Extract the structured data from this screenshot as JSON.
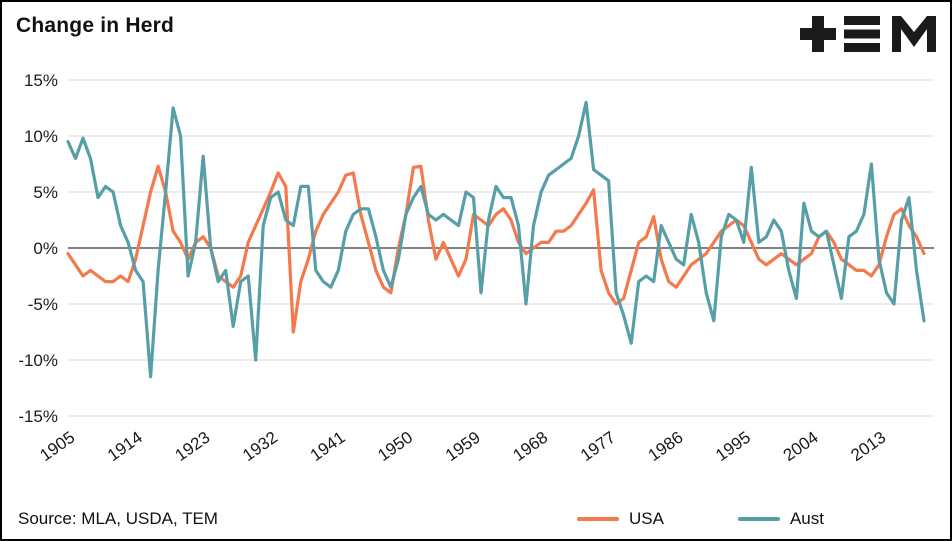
{
  "page": {
    "title": "Change in Herd",
    "source": "Source: MLA, USDA, TEM"
  },
  "logo": {
    "name": "TEM",
    "icon": "plus-triplebar-m-logo",
    "color": "#1a1a1a"
  },
  "chart_data": {
    "type": "line",
    "title": "Change in Herd",
    "xlabel": "",
    "ylabel": "",
    "grid": "horizontal",
    "legend_position": "bottom",
    "xlim": [
      1905,
      2019
    ],
    "ylim": [
      -15,
      15
    ],
    "ytick_values": [
      15,
      10,
      5,
      0,
      -5,
      -10,
      -15
    ],
    "ytick_labels": [
      "15%",
      "10%",
      "5%",
      "0%",
      "-5%",
      "-10%",
      "-15%"
    ],
    "xtick_labels": [
      "1905",
      "1914",
      "1923",
      "1932",
      "1941",
      "1950",
      "1959",
      "1968",
      "1977",
      "1986",
      "1995",
      "2004",
      "2013"
    ],
    "x": [
      1905,
      1906,
      1907,
      1908,
      1909,
      1910,
      1911,
      1912,
      1913,
      1914,
      1915,
      1916,
      1917,
      1918,
      1919,
      1920,
      1921,
      1922,
      1923,
      1924,
      1925,
      1926,
      1927,
      1928,
      1929,
      1930,
      1931,
      1932,
      1933,
      1934,
      1935,
      1936,
      1937,
      1938,
      1939,
      1940,
      1941,
      1942,
      1943,
      1944,
      1945,
      1946,
      1947,
      1948,
      1949,
      1950,
      1951,
      1952,
      1953,
      1954,
      1955,
      1956,
      1957,
      1958,
      1959,
      1960,
      1961,
      1962,
      1963,
      1964,
      1965,
      1966,
      1967,
      1968,
      1969,
      1970,
      1971,
      1972,
      1973,
      1974,
      1975,
      1976,
      1977,
      1978,
      1979,
      1980,
      1981,
      1982,
      1983,
      1984,
      1985,
      1986,
      1987,
      1988,
      1989,
      1990,
      1991,
      1992,
      1993,
      1994,
      1995,
      1996,
      1997,
      1998,
      1999,
      2000,
      2001,
      2002,
      2003,
      2004,
      2005,
      2006,
      2007,
      2008,
      2009,
      2010,
      2011,
      2012,
      2013,
      2014,
      2015,
      2016,
      2017,
      2018,
      2019
    ],
    "series": [
      {
        "name": "USA",
        "color": "#F4794D",
        "values": [
          -0.5,
          -1.5,
          -2.5,
          -2,
          -2.5,
          -3,
          -3,
          -2.5,
          -3,
          -1,
          2,
          5,
          7.3,
          5,
          1.5,
          0.5,
          -1,
          0.5,
          1,
          0,
          -2.5,
          -3,
          -3.5,
          -2.5,
          0.5,
          2,
          3.5,
          5,
          6.7,
          5.5,
          -7.5,
          -3,
          -1,
          1.5,
          3,
          4,
          5,
          6.5,
          6.7,
          3,
          0.5,
          -2,
          -3.5,
          -4,
          0,
          3,
          7.2,
          7.3,
          2.5,
          -1,
          0.5,
          -1,
          -2.5,
          -1,
          3,
          2.5,
          2,
          3,
          3.5,
          2.5,
          0.5,
          -0.5,
          0,
          0.5,
          0.5,
          1.5,
          1.5,
          2,
          3,
          4,
          5.2,
          -2,
          -4,
          -5,
          -4.5,
          -2,
          0.5,
          1,
          2.8,
          -1,
          -3,
          -3.5,
          -2.5,
          -1.5,
          -1,
          -0.5,
          0.5,
          1.5,
          2,
          2.5,
          2,
          0.5,
          -1,
          -1.5,
          -1,
          -0.5,
          -1,
          -1.5,
          -1,
          -0.5,
          1,
          1.5,
          0.5,
          -1,
          -1.5,
          -2,
          -2,
          -2.5,
          -1.5,
          1,
          3,
          3.5,
          2,
          1,
          -0.5
        ]
      },
      {
        "name": "Aust",
        "color": "#579FA7",
        "values": [
          9.5,
          8,
          9.8,
          8,
          4.5,
          5.5,
          5,
          2,
          0.5,
          -2,
          -3,
          -11.5,
          -2,
          5,
          12.5,
          10,
          -2.5,
          0.5,
          8.2,
          0,
          -3,
          -2,
          -7,
          -3,
          -2.5,
          -10,
          2,
          4.5,
          5,
          2.5,
          2,
          5.5,
          5.5,
          -2,
          -3,
          -3.5,
          -2,
          1.5,
          3,
          3.5,
          3.5,
          1,
          -2,
          -3.5,
          -1,
          3,
          4.5,
          5.5,
          3,
          2.5,
          3,
          2.5,
          2,
          5,
          4.5,
          -4,
          2.5,
          5.5,
          4.5,
          4.5,
          2,
          -5,
          2,
          5,
          6.5,
          7,
          7.5,
          8,
          10,
          13,
          7,
          6.5,
          6,
          -4,
          -6,
          -8.5,
          -3,
          -2.5,
          -3,
          2,
          0.5,
          -1,
          -1.5,
          3,
          0.5,
          -4,
          -6.5,
          1,
          3,
          2.5,
          0.5,
          7.2,
          0.5,
          1,
          2.5,
          1.5,
          -2,
          -4.5,
          4,
          1.5,
          1,
          1.5,
          -1.5,
          -4.5,
          1,
          1.5,
          3,
          7.5,
          -1,
          -4,
          -5,
          2.5,
          4.5,
          -2,
          -6.5
        ]
      }
    ]
  }
}
